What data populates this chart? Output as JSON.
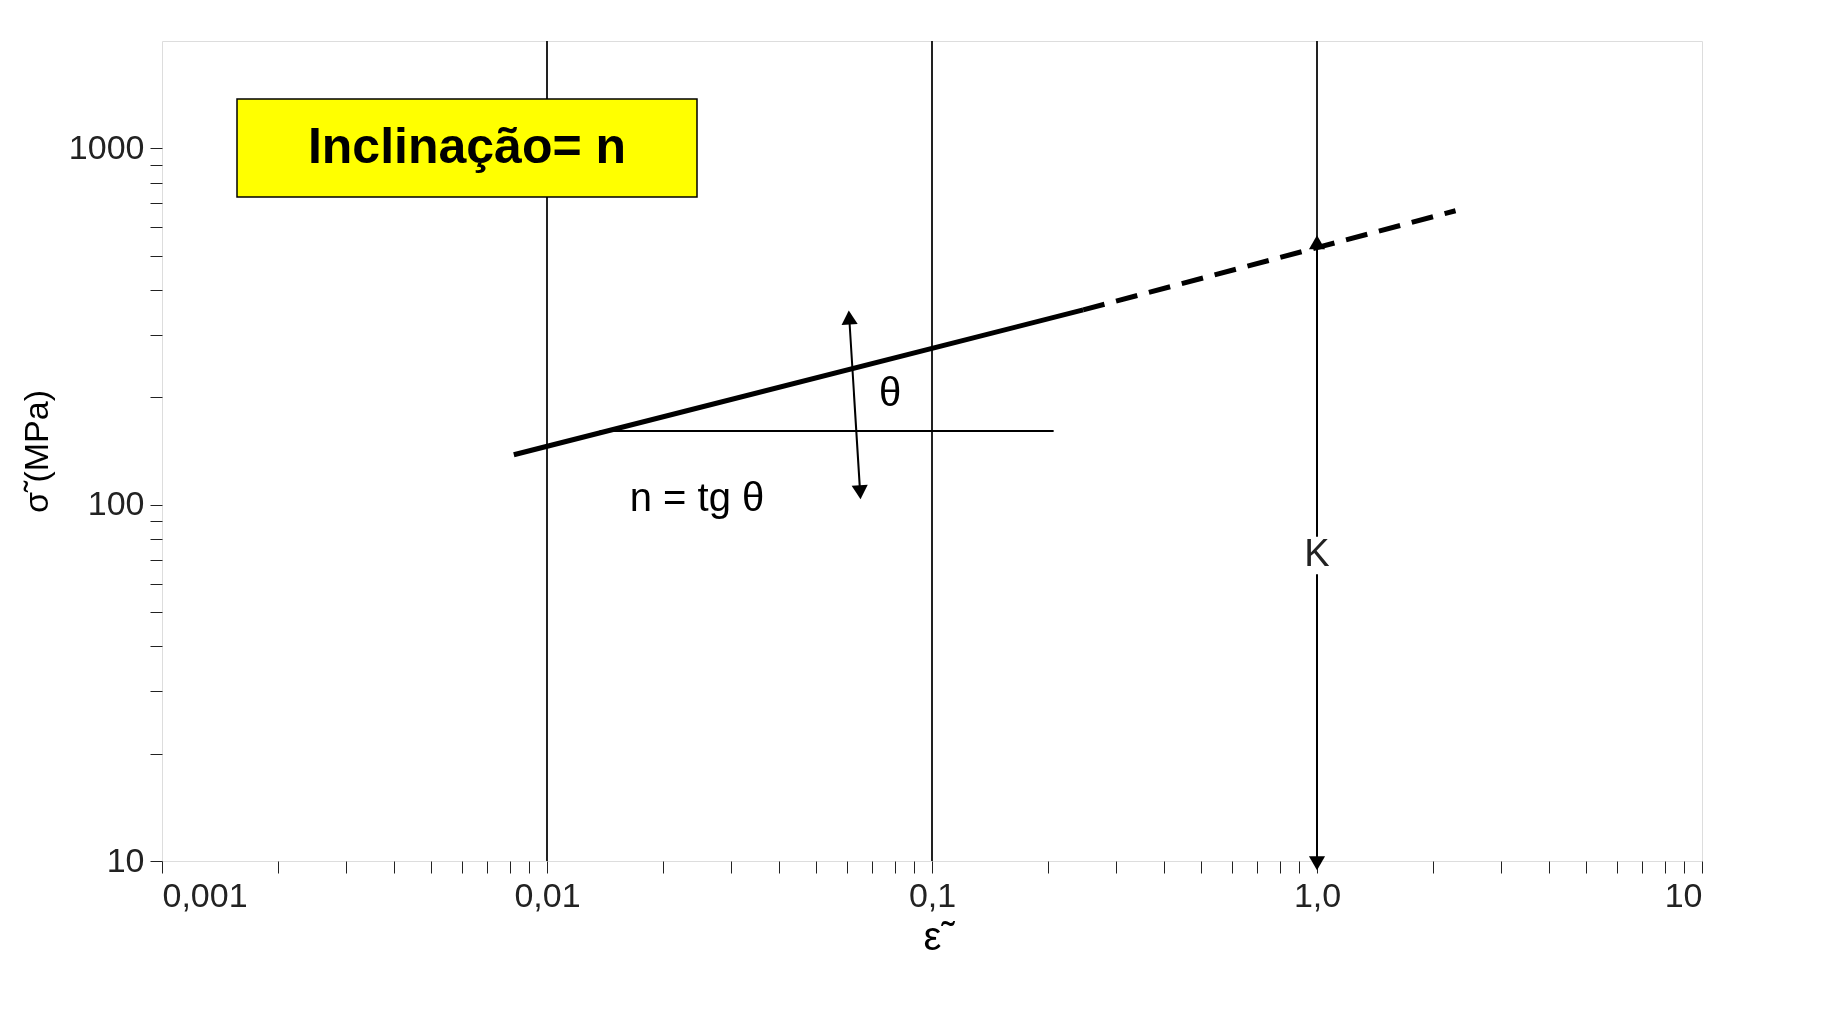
{
  "chart_data": {
    "type": "line",
    "xlabel": "ε̃",
    "ylabel": "σ̃ (MPa)",
    "log": "xy",
    "grid": "x",
    "xlim": [
      0.001,
      10
    ],
    "ylim": [
      10,
      2000
    ],
    "xticks": [
      {
        "value": 0.001,
        "label": "0,001"
      },
      {
        "value": 0.002,
        "label": null
      },
      {
        "value": 0.003,
        "label": null
      },
      {
        "value": 0.004,
        "label": null
      },
      {
        "value": 0.005,
        "label": null
      },
      {
        "value": 0.006,
        "label": null
      },
      {
        "value": 0.007,
        "label": null
      },
      {
        "value": 0.008,
        "label": null
      },
      {
        "value": 0.009,
        "label": null
      },
      {
        "value": 0.01,
        "label": "0,01"
      },
      {
        "value": 0.02,
        "label": null
      },
      {
        "value": 0.03,
        "label": null
      },
      {
        "value": 0.04,
        "label": null
      },
      {
        "value": 0.05,
        "label": null
      },
      {
        "value": 0.06,
        "label": null
      },
      {
        "value": 0.07,
        "label": null
      },
      {
        "value": 0.08,
        "label": null
      },
      {
        "value": 0.09,
        "label": null
      },
      {
        "value": 0.1,
        "label": "0,1"
      },
      {
        "value": 0.2,
        "label": null
      },
      {
        "value": 0.3,
        "label": null
      },
      {
        "value": 0.4,
        "label": null
      },
      {
        "value": 0.5,
        "label": null
      },
      {
        "value": 0.6,
        "label": null
      },
      {
        "value": 0.7,
        "label": null
      },
      {
        "value": 0.8,
        "label": null
      },
      {
        "value": 0.9,
        "label": null
      },
      {
        "value": 1,
        "label": "1,0"
      },
      {
        "value": 2,
        "label": null
      },
      {
        "value": 3,
        "label": null
      },
      {
        "value": 4,
        "label": null
      },
      {
        "value": 5,
        "label": null
      },
      {
        "value": 6,
        "label": null
      },
      {
        "value": 7,
        "label": null
      },
      {
        "value": 8,
        "label": null
      },
      {
        "value": 9,
        "label": null
      },
      10
    ],
    "yticks": [
      10,
      {
        "value": 20,
        "label": null
      },
      {
        "value": 30,
        "label": null
      },
      {
        "value": 40,
        "label": null
      },
      {
        "value": 50,
        "label": null
      },
      {
        "value": 60,
        "label": null
      },
      {
        "value": 70,
        "label": null
      },
      {
        "value": 80,
        "label": null
      },
      {
        "value": 90,
        "label": null
      },
      100,
      {
        "value": 200,
        "label": null
      },
      {
        "value": 300,
        "label": null
      },
      {
        "value": 400,
        "label": null
      },
      {
        "value": 500,
        "label": null
      },
      {
        "value": 600,
        "label": null
      },
      {
        "value": 700,
        "label": null
      },
      {
        "value": 800,
        "label": null
      },
      {
        "value": 900,
        "label": null
      },
      1000
    ],
    "series": [
      {
        "color": "#000000",
        "line_style": "solid",
        "x": [
          0.0082,
          0.247
        ],
        "values": [
          138,
          352
        ]
      },
      {
        "color": "#000000",
        "line_style": "dashed",
        "x": [
          0.247,
          2.29
        ],
        "values": [
          352,
          668
        ]
      },
      {
        "color": "#000000",
        "line_style": "solid",
        "x": [
          0.0137,
          0.207
        ],
        "values": [
          161,
          161
        ]
      },
      {
        "color": "#000000",
        "line_style": "solid",
        "marker": "triangle",
        "x": [
          1,
          1
        ],
        "values": [
          10,
          537
        ]
      },
      {
        "color": "#000000",
        "line_style": "solid",
        "marker": "triangle",
        "x": [
          0.061,
          0.065
        ],
        "values": [
          330,
          110
        ]
      }
    ],
    "annotations": [
      "Inclinação= n",
      "θ",
      "n = tg θ",
      {
        "text": "K",
        "x": 1,
        "y": 72
      }
    ]
  }
}
